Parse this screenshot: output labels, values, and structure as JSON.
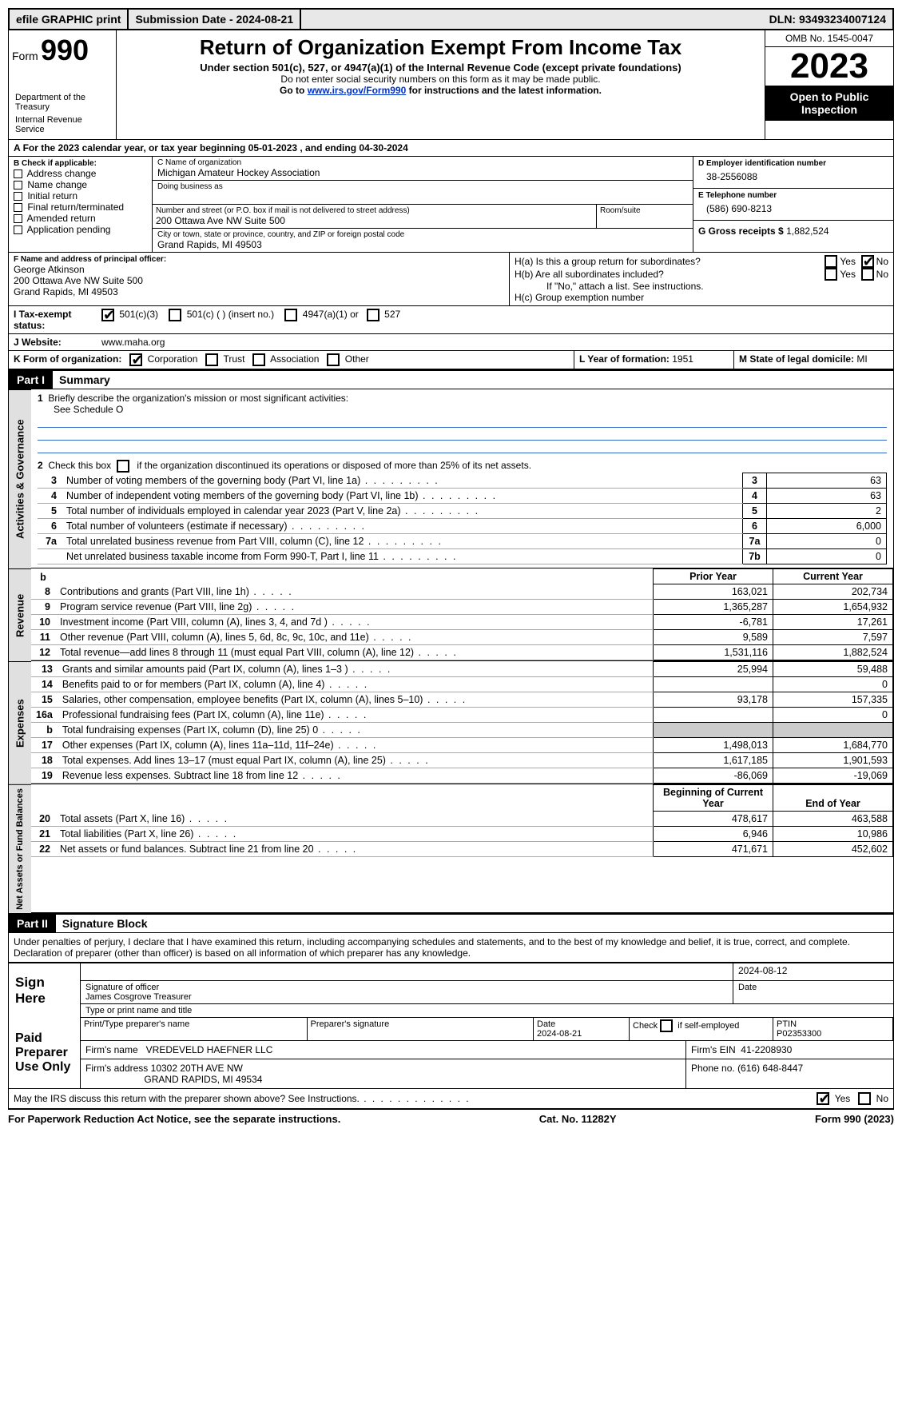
{
  "topbar": {
    "efile": "efile GRAPHIC print",
    "submission_label": "Submission Date - ",
    "submission_date": "2024-08-21",
    "dln_label": "DLN: ",
    "dln": "93493234007124"
  },
  "header": {
    "form_word": "Form",
    "form_num": "990",
    "dept": "Department of the Treasury",
    "irs": "Internal Revenue Service",
    "title": "Return of Organization Exempt From Income Tax",
    "sub": "Under section 501(c), 527, or 4947(a)(1) of the Internal Revenue Code (except private foundations)",
    "note1": "Do not enter social security numbers on this form as it may be made public.",
    "note2_pre": "Go to ",
    "note2_link": "www.irs.gov/Form990",
    "note2_post": " for instructions and the latest information.",
    "omb": "OMB No. 1545-0047",
    "year": "2023",
    "inspect": "Open to Public Inspection"
  },
  "line_a": "For the 2023 calendar year, or tax year beginning 05-01-2023   , and ending 04-30-2024",
  "box_b": {
    "title": "B Check if applicable:",
    "items": [
      "Address change",
      "Name change",
      "Initial return",
      "Final return/terminated",
      "Amended return",
      "Application pending"
    ]
  },
  "box_c": {
    "label_name": "C Name of organization",
    "org_name": "Michigan Amateur Hockey Association",
    "dba_label": "Doing business as",
    "dba": "",
    "addr_label": "Number and street (or P.O. box if mail is not delivered to street address)",
    "addr": "200 Ottawa Ave NW Suite 500",
    "room_label": "Room/suite",
    "city_label": "City or town, state or province, country, and ZIP or foreign postal code",
    "city": "Grand Rapids, MI  49503"
  },
  "box_d": {
    "label": "D Employer identification number",
    "value": "38-2556088"
  },
  "box_e": {
    "label": "E Telephone number",
    "value": "(586) 690-8213"
  },
  "box_g": {
    "label": "G Gross receipts $ ",
    "value": "1,882,524"
  },
  "box_f": {
    "label": "F  Name and address of principal officer:",
    "name": "George Atkinson",
    "addr1": "200 Ottawa Ave NW Suite 500",
    "addr2": "Grand Rapids, MI  49503"
  },
  "box_h": {
    "a_label": "H(a)  Is this a group return for subordinates?",
    "b_label": "H(b)  Are all subordinates included?",
    "b_note": "If \"No,\" attach a list. See instructions.",
    "c_label": "H(c)  Group exemption number",
    "yes": "Yes",
    "no": "No"
  },
  "tax_status": {
    "label": "I  Tax-exempt status:",
    "opt1": "501(c)(3)",
    "opt2": "501(c) (  ) (insert no.)",
    "opt3": "4947(a)(1) or",
    "opt4": "527"
  },
  "box_j": {
    "label": "J  Website:",
    "value": "www.maha.org"
  },
  "box_k": {
    "label": "K Form of organization:",
    "opts": [
      "Corporation",
      "Trust",
      "Association",
      "Other"
    ]
  },
  "box_l": {
    "label": "L Year of formation: ",
    "value": "1951"
  },
  "box_m": {
    "label": "M State of legal domicile: ",
    "value": "MI"
  },
  "part1": {
    "header": "Part I",
    "title": "Summary",
    "line1_label": "Briefly describe the organization's mission or most significant activities:",
    "line1_value": "See Schedule O",
    "line2": "Check this box         if the organization discontinued its operations or disposed of more than 25% of its net assets.",
    "governance_rows": [
      {
        "n": "3",
        "desc": "Number of voting members of the governing body (Part VI, line 1a)",
        "box": "3",
        "v": "63"
      },
      {
        "n": "4",
        "desc": "Number of independent voting members of the governing body (Part VI, line 1b)",
        "box": "4",
        "v": "63"
      },
      {
        "n": "5",
        "desc": "Total number of individuals employed in calendar year 2023 (Part V, line 2a)",
        "box": "5",
        "v": "2"
      },
      {
        "n": "6",
        "desc": "Total number of volunteers (estimate if necessary)",
        "box": "6",
        "v": "6,000"
      },
      {
        "n": "7a",
        "desc": "Total unrelated business revenue from Part VIII, column (C), line 12",
        "box": "7a",
        "v": "0"
      },
      {
        "n": "",
        "desc": "Net unrelated business taxable income from Form 990-T, Part I, line 11",
        "box": "7b",
        "v": "0"
      }
    ],
    "two_col_header_b": "b",
    "prior_year": "Prior Year",
    "current_year": "Current Year",
    "revenue_rows": [
      {
        "n": "8",
        "desc": "Contributions and grants (Part VIII, line 1h)",
        "py": "163,021",
        "cy": "202,734"
      },
      {
        "n": "9",
        "desc": "Program service revenue (Part VIII, line 2g)",
        "py": "1,365,287",
        "cy": "1,654,932"
      },
      {
        "n": "10",
        "desc": "Investment income (Part VIII, column (A), lines 3, 4, and 7d )",
        "py": "-6,781",
        "cy": "17,261"
      },
      {
        "n": "11",
        "desc": "Other revenue (Part VIII, column (A), lines 5, 6d, 8c, 9c, 10c, and 11e)",
        "py": "9,589",
        "cy": "7,597"
      },
      {
        "n": "12",
        "desc": "Total revenue—add lines 8 through 11 (must equal Part VIII, column (A), line 12)",
        "py": "1,531,116",
        "cy": "1,882,524"
      }
    ],
    "expense_rows": [
      {
        "n": "13",
        "desc": "Grants and similar amounts paid (Part IX, column (A), lines 1–3 )",
        "py": "25,994",
        "cy": "59,488"
      },
      {
        "n": "14",
        "desc": "Benefits paid to or for members (Part IX, column (A), line 4)",
        "py": "",
        "cy": "0"
      },
      {
        "n": "15",
        "desc": "Salaries, other compensation, employee benefits (Part IX, column (A), lines 5–10)",
        "py": "93,178",
        "cy": "157,335"
      },
      {
        "n": "16a",
        "desc": "Professional fundraising fees (Part IX, column (A), line 11e)",
        "py": "",
        "cy": "0"
      },
      {
        "n": "b",
        "desc": "Total fundraising expenses (Part IX, column (D), line 25) 0",
        "py": "SHADE",
        "cy": "SHADE"
      },
      {
        "n": "17",
        "desc": "Other expenses (Part IX, column (A), lines 11a–11d, 11f–24e)",
        "py": "1,498,013",
        "cy": "1,684,770"
      },
      {
        "n": "18",
        "desc": "Total expenses. Add lines 13–17 (must equal Part IX, column (A), line 25)",
        "py": "1,617,185",
        "cy": "1,901,593"
      },
      {
        "n": "19",
        "desc": "Revenue less expenses. Subtract line 18 from line 12",
        "py": "-86,069",
        "cy": "-19,069"
      }
    ],
    "bocy": "Beginning of Current Year",
    "eoy": "End of Year",
    "net_rows": [
      {
        "n": "20",
        "desc": "Total assets (Part X, line 16)",
        "py": "478,617",
        "cy": "463,588"
      },
      {
        "n": "21",
        "desc": "Total liabilities (Part X, line 26)",
        "py": "6,946",
        "cy": "10,986"
      },
      {
        "n": "22",
        "desc": "Net assets or fund balances. Subtract line 21 from line 20",
        "py": "471,671",
        "cy": "452,602"
      }
    ]
  },
  "side_labels": {
    "gov": "Activities & Governance",
    "rev": "Revenue",
    "exp": "Expenses",
    "net": "Net Assets or Fund Balances"
  },
  "part2": {
    "header": "Part II",
    "title": "Signature Block",
    "perjury": "Under penalties of perjury, I declare that I have examined this return, including accompanying schedules and statements, and to the best of my knowledge and belief, it is true, correct, and complete. Declaration of preparer (other than officer) is based on all information of which preparer has any knowledge.",
    "sign_here": "Sign Here",
    "sig_officer": "Signature of officer",
    "sig_date_label": "Date",
    "sig_date": "2024-08-12",
    "officer_name": "James Cosgrove Treasurer",
    "type_name": "Type or print name and title",
    "paid": "Paid Preparer Use Only",
    "print_name_label": "Print/Type preparer's name",
    "prep_sig_label": "Preparer's signature",
    "date_label": "Date",
    "prep_date": "2024-08-21",
    "check_self": "Check          if self-employed",
    "ptin_label": "PTIN",
    "ptin": "P02353300",
    "firm_name_label": "Firm's name",
    "firm_name": "VREDEVELD HAEFNER LLC",
    "firm_ein_label": "Firm's EIN",
    "firm_ein": "41-2208930",
    "firm_addr_label": "Firm's address",
    "firm_addr1": "10302 20TH AVE NW",
    "firm_addr2": "GRAND RAPIDS, MI  49534",
    "phone_label": "Phone no.",
    "phone": "(616) 648-8447",
    "may_irs": "May the IRS discuss this return with the preparer shown above? See Instructions.",
    "yes": "Yes",
    "no": "No"
  },
  "footer": {
    "paperwork": "For Paperwork Reduction Act Notice, see the separate instructions.",
    "cat": "Cat. No. 11282Y",
    "form": "Form 990 (2023)"
  }
}
